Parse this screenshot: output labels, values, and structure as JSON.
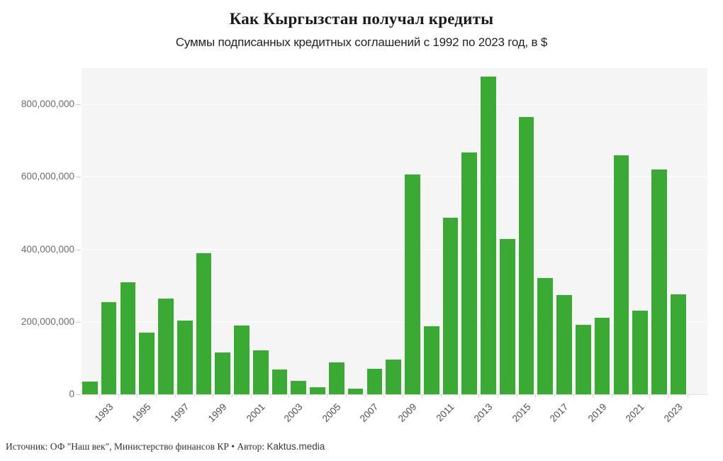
{
  "header": {
    "title": "Как Кыргызстан получал кредиты",
    "subtitle": "Суммы подписанных кредитных соглашений с 1992 по 2023 год, в $"
  },
  "footer": {
    "source_text": "Источник: ОФ \"Наш век\", Министерство финансов КР • Автор: ",
    "author": "Kaktus.media"
  },
  "chart_data": {
    "type": "bar",
    "title": "Как Кыргызстан получал кредиты",
    "subtitle": "Суммы подписанных кредитных соглашений с 1992 по 2023 год, в $",
    "xlabel": "",
    "ylabel": "",
    "categories": [
      1992,
      1993,
      1994,
      1995,
      1996,
      1997,
      1998,
      1999,
      2000,
      2001,
      2002,
      2003,
      2004,
      2005,
      2006,
      2007,
      2008,
      2009,
      2010,
      2011,
      2012,
      2013,
      2014,
      2015,
      2016,
      2017,
      2018,
      2019,
      2020,
      2021,
      2022,
      2023
    ],
    "values": [
      36000000,
      255000000,
      310000000,
      170000000,
      264000000,
      204000000,
      390000000,
      116000000,
      189000000,
      122000000,
      69000000,
      37000000,
      20000000,
      88000000,
      15000000,
      70000000,
      95000000,
      607000000,
      188000000,
      487000000,
      668000000,
      876000000,
      429000000,
      765000000,
      321000000,
      274000000,
      192000000,
      211000000,
      660000000,
      231000000,
      621000000,
      276000000
    ],
    "ylim": [
      0,
      900000000
    ],
    "yticks": [
      0,
      200000000,
      400000000,
      600000000,
      800000000
    ],
    "ytick_labels": [
      "0",
      "200,000,000",
      "400,000,000",
      "600,000,000",
      "800,000,000"
    ],
    "xtick_labels": [
      "1993",
      "1995",
      "1997",
      "1999",
      "2001",
      "2003",
      "2005",
      "2007",
      "2009",
      "2011",
      "2013",
      "2015",
      "2017",
      "2019",
      "2021",
      "2023"
    ],
    "grid": "on",
    "legend": "none",
    "colors": {
      "bar": "#3aaa35",
      "plot_background": "#f4f5f4",
      "gridline": "#fbfbfb"
    }
  }
}
